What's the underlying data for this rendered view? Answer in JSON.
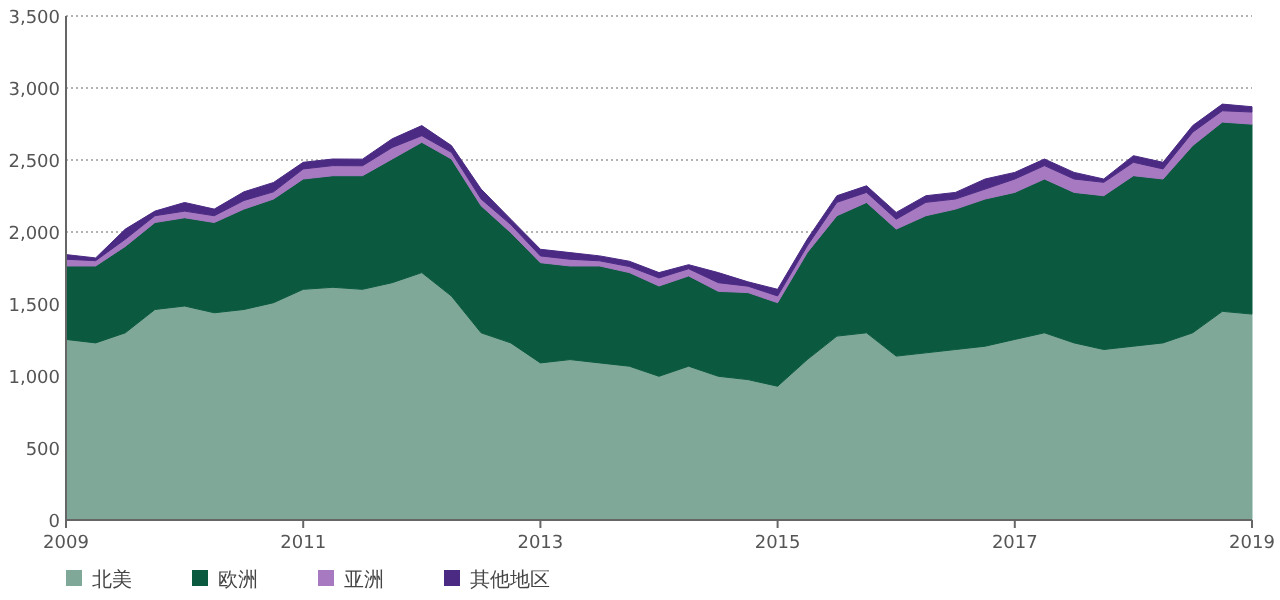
{
  "chart_data": {
    "type": "area",
    "stacked": true,
    "grid": "y",
    "legend": "bottom left",
    "x": [
      2009,
      2009.25,
      2009.5,
      2009.75,
      2010,
      2010.25,
      2010.5,
      2010.75,
      2011,
      2011.25,
      2011.5,
      2011.75,
      2012,
      2012.25,
      2012.5,
      2012.75,
      2013,
      2013.25,
      2013.5,
      2013.75,
      2014,
      2014.25,
      2014.5,
      2014.75,
      2015,
      2015.25,
      2015.5,
      2015.75,
      2016,
      2016.25,
      2016.5,
      2016.75,
      2017,
      2017.25,
      2017.5,
      2017.75,
      2018,
      2018.25,
      2018.5,
      2018.75,
      2019
    ],
    "xlim": [
      2009,
      2019
    ],
    "xticks": [
      2009,
      2011,
      2013,
      2015,
      2017,
      2019
    ],
    "ylim": [
      0,
      3500
    ],
    "yticks": [
      0,
      {
        "value": 500,
        "label": "500"
      },
      {
        "value": 1000,
        "label": "1,000"
      },
      {
        "value": 1500,
        "label": "1,500"
      },
      {
        "value": 2000,
        "label": "2,000"
      },
      {
        "value": 2500,
        "label": "2,500"
      },
      {
        "value": 3000,
        "label": "3,000"
      },
      {
        "value": 3500,
        "label": "3,500"
      }
    ],
    "series": [
      {
        "name": "北美",
        "color": "#7fa898",
        "values": [
          1254,
          1230,
          1300,
          1462,
          1486,
          1439,
          1462,
          1509,
          1602,
          1616,
          1602,
          1648,
          1718,
          1555,
          1300,
          1230,
          1091,
          1114,
          1091,
          1068,
          998,
          1068,
          998,
          975,
          929,
          1114,
          1277,
          1300,
          1138,
          1161,
          1184,
          1207,
          1254,
          1300,
          1230,
          1184,
          1207,
          1230,
          1300,
          1449,
          1430
        ]
      },
      {
        "name": "欧洲",
        "color": "#0b5a40",
        "values": [
          510,
          534,
          600,
          604,
          613,
          627,
          697,
          720,
          766,
          775,
          789,
          859,
          905,
          952,
          882,
          766,
          696,
          650,
          673,
          650,
          627,
          627,
          590,
          604,
          580,
          743,
          836,
          905,
          882,
          952,
          975,
          1022,
          1021,
          1068,
          1045,
          1068,
          1184,
          1138,
          1300,
          1314,
          1319
        ]
      },
      {
        "name": "亚洲",
        "color": "#a679c0",
        "values": [
          47,
          37,
          50,
          47,
          46,
          47,
          60,
          50,
          70,
          70,
          69,
          80,
          46,
          46,
          47,
          56,
          47,
          47,
          36,
          42,
          56,
          50,
          60,
          45,
          47,
          47,
          93,
          70,
          69,
          93,
          70,
          69,
          93,
          93,
          93,
          93,
          93,
          70,
          93,
          79,
          84
        ]
      },
      {
        "name": "其他地区",
        "color": "#4b2a84",
        "values": [
          32,
          19,
          70,
          32,
          60,
          46,
          60,
          65,
          46,
          46,
          46,
          60,
          70,
          47,
          69,
          37,
          46,
          46,
          34,
          37,
          37,
          28,
          70,
          30,
          46,
          46,
          46,
          46,
          47,
          46,
          46,
          70,
          46,
          46,
          46,
          23,
          46,
          46,
          46,
          46,
          37
        ]
      }
    ]
  }
}
